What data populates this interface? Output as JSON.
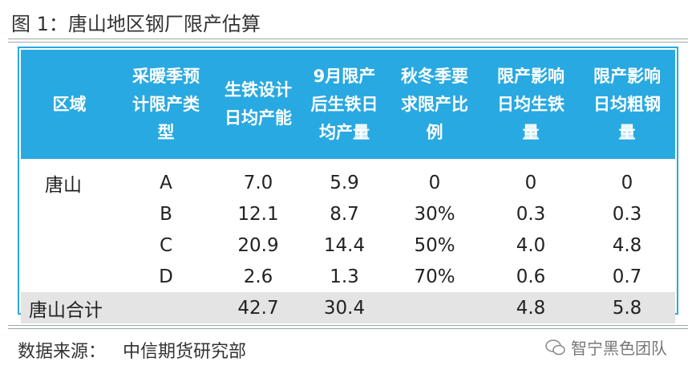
{
  "header": {
    "title": "图 1：唐山地区钢厂限产估算"
  },
  "table": {
    "columns": [
      "区域",
      "采暖季预计限产类型",
      "生铁设计日均产能",
      "9月限产后生铁日均产量",
      "秋冬季要求限产比例",
      "限产影响日均生铁量",
      "限产影响日均粗钢量"
    ],
    "rows": [
      [
        "唐山",
        "A",
        "7.0",
        "5.9",
        "0",
        "0",
        "0"
      ],
      [
        null,
        "B",
        "12.1",
        "8.7",
        "30%",
        "0.3",
        "0.3"
      ],
      [
        null,
        "C",
        "20.9",
        "14.4",
        "50%",
        "4.0",
        "4.8"
      ],
      [
        null,
        "D",
        "2.6",
        "1.3",
        "70%",
        "0.6",
        "0.7"
      ],
      [
        "唐山合计",
        null,
        "42.7",
        "30.4",
        null,
        "4.8",
        "5.8"
      ]
    ]
  },
  "footer": {
    "source_label": "数据来源：",
    "source": "中信期货研究部",
    "watermark": "智宁黑色团队"
  }
}
